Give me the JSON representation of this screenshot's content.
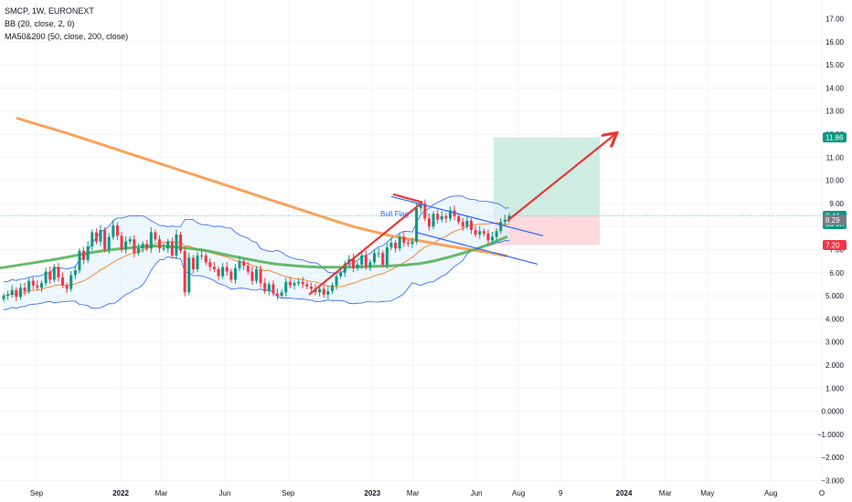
{
  "legend": {
    "symbol": "SMCP, 1W, EURONEXT",
    "bb": "BB (20, close, 2, 0)",
    "ma": "MA50&200 (50, close, 200, close)"
  },
  "annotation": {
    "bull_flag": "Bull Flag"
  },
  "colors": {
    "up": "#089981",
    "down": "#f23645",
    "bb_line": "#2962ff",
    "bb_fill": "#e3f2fd",
    "ma50": "#4caf50",
    "ma200": "#f7a35c",
    "arrow": "#e53935",
    "flag": "#2962ff",
    "target_zone": "#cfece3",
    "stop_zone": "#fcdadd",
    "price_line": "#26a69a"
  },
  "chart_data": {
    "type": "candlestick",
    "y_axis": {
      "ticks": [
        16,
        15,
        14,
        13,
        12,
        11,
        10,
        9,
        8,
        7,
        6,
        5,
        4,
        3,
        2,
        1,
        0,
        -1,
        -2,
        -3
      ],
      "tick_labels": [
        "16.00",
        "15.00",
        "14.00",
        "13.00",
        "12.00",
        "11.00",
        "10.00",
        "9.00",
        "8.00",
        "7.00",
        "6.00",
        "5.000",
        "4.000",
        "3.000",
        "2.000",
        "1.000",
        "0.0000",
        "−1.0000",
        "−2.000",
        "−3.000"
      ],
      "top_cut_label": "17.00",
      "ylim": [
        -3.3,
        17.3
      ]
    },
    "x_axis": {
      "range": [
        "2021-07-05",
        "2024-10-14"
      ],
      "ticks": [
        {
          "date": "2021-09-01",
          "label": "Sep",
          "bold": false
        },
        {
          "date": "2022-01-01",
          "label": "2022",
          "bold": true
        },
        {
          "date": "2022-03-01",
          "label": "Mar",
          "bold": false
        },
        {
          "date": "2022-06-01",
          "label": "Jun",
          "bold": false
        },
        {
          "date": "2022-09-01",
          "label": "Sep",
          "bold": false
        },
        {
          "date": "2023-01-01",
          "label": "2023",
          "bold": true
        },
        {
          "date": "2023-03-01",
          "label": "Mar",
          "bold": false
        },
        {
          "date": "2023-06-01",
          "label": "Jun",
          "bold": false
        },
        {
          "date": "2023-08-01",
          "label": "Aug",
          "bold": false
        },
        {
          "date": "2023-10-01",
          "label": "9",
          "bold": false
        },
        {
          "date": "2024-01-01",
          "label": "2024",
          "bold": true
        },
        {
          "date": "2024-03-01",
          "label": "Mar",
          "bold": false
        },
        {
          "date": "2024-05-01",
          "label": "May",
          "bold": false
        },
        {
          "date": "2024-08-01",
          "label": "Aug",
          "bold": false
        },
        {
          "date": "2024-10-14",
          "label": "O",
          "bold": false
        }
      ]
    },
    "price_tags": [
      {
        "value": 11.86,
        "label": "11.86",
        "color": "#089981"
      },
      {
        "value": 8.46,
        "label": "8.46",
        "sub": "3d 5h",
        "color": "#089981"
      },
      {
        "value": 8.29,
        "label": "8.29",
        "color": "#787b86"
      },
      {
        "value": 7.2,
        "label": "7.20",
        "color": "#f23645"
      }
    ],
    "position": {
      "start": "2023-06-26",
      "end": "2023-11-27",
      "entry": 8.46,
      "target": 11.86,
      "stop": 7.2
    },
    "closes": [
      5.0,
      5.05,
      5.25,
      4.95,
      5.35,
      5.2,
      5.65,
      5.45,
      5.35,
      5.55,
      6.05,
      5.7,
      6.25,
      5.8,
      5.45,
      5.3,
      5.9,
      6.1,
      6.95,
      6.55,
      7.15,
      7.75,
      7.35,
      7.85,
      7.0,
      7.55,
      8.05,
      7.6,
      7.0,
      7.35,
      7.45,
      6.85,
      7.05,
      7.25,
      7.05,
      7.75,
      7.45,
      7.05,
      7.05,
      7.35,
      6.75,
      7.65,
      6.95,
      5.15,
      6.65,
      6.15,
      6.75,
      6.75,
      6.45,
      6.25,
      6.15,
      5.85,
      6.25,
      6.05,
      5.7,
      6.2,
      6.5,
      6.3,
      6.05,
      5.65,
      6.15,
      5.55,
      5.2,
      5.5,
      5.1,
      5.0,
      5.15,
      5.6,
      5.45,
      5.55,
      5.6,
      5.5,
      5.4,
      5.3,
      5.15,
      5.3,
      5.05,
      5.2,
      5.45,
      5.85,
      6.0,
      6.4,
      6.6,
      6.2,
      6.35,
      6.75,
      6.25,
      6.45,
      6.85,
      6.85,
      6.35,
      7.1,
      7.3,
      7.05,
      7.55,
      7.3,
      7.25,
      7.35,
      8.8,
      9.0,
      8.35,
      8.0,
      8.55,
      8.3,
      8.45,
      8.35,
      8.7,
      8.45,
      8.2,
      8.0,
      8.25,
      7.85,
      7.65,
      7.8,
      7.7,
      7.4,
      7.55,
      7.8,
      8.2,
      8.29,
      8.46
    ],
    "ma200": [
      12.7,
      12.48,
      12.26,
      12.04,
      11.8,
      11.56,
      11.32,
      11.08,
      10.84,
      10.6,
      10.36,
      10.12,
      9.88,
      9.64,
      9.4,
      9.16,
      8.92,
      8.68,
      8.44,
      8.2,
      7.98,
      7.8,
      7.62,
      7.48,
      7.36,
      7.22,
      7.1,
      6.98,
      6.86,
      6.72
    ],
    "ma50": [
      6.2,
      6.3,
      6.4,
      6.5,
      6.6,
      6.72,
      6.84,
      6.94,
      7.02,
      7.08,
      7.14,
      7.16,
      7.12,
      7.06,
      6.98,
      6.86,
      6.72,
      6.6,
      6.48,
      6.38,
      6.32,
      6.27,
      6.24,
      6.24,
      6.24,
      6.26,
      6.28,
      6.3,
      6.34,
      6.4,
      6.52,
      6.68,
      6.86,
      7.06,
      7.3,
      7.56
    ]
  }
}
